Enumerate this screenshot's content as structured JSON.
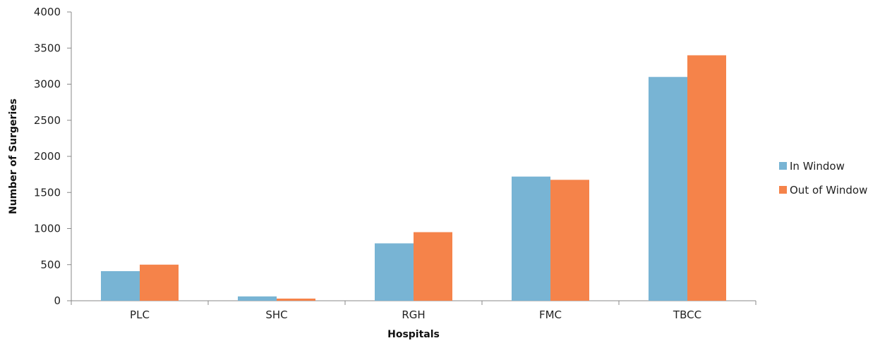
{
  "chart_data": {
    "type": "bar",
    "title": "",
    "xlabel": "Hospitals",
    "ylabel": "Number of Surgeries",
    "categories": [
      "PLC",
      "SHC",
      "RGH",
      "FMC",
      "TBCC"
    ],
    "series": [
      {
        "name": "In Window",
        "color": "#78b4d4",
        "values": [
          410,
          60,
          795,
          1720,
          3100
        ]
      },
      {
        "name": "Out of Window",
        "color": "#f5834a",
        "values": [
          500,
          30,
          950,
          1675,
          3400
        ]
      }
    ],
    "ylim": [
      0,
      4000
    ],
    "yticks": [
      0,
      500,
      1000,
      1500,
      2000,
      2500,
      3000,
      3500,
      4000
    ],
    "grid": false,
    "legend_position": "right"
  }
}
